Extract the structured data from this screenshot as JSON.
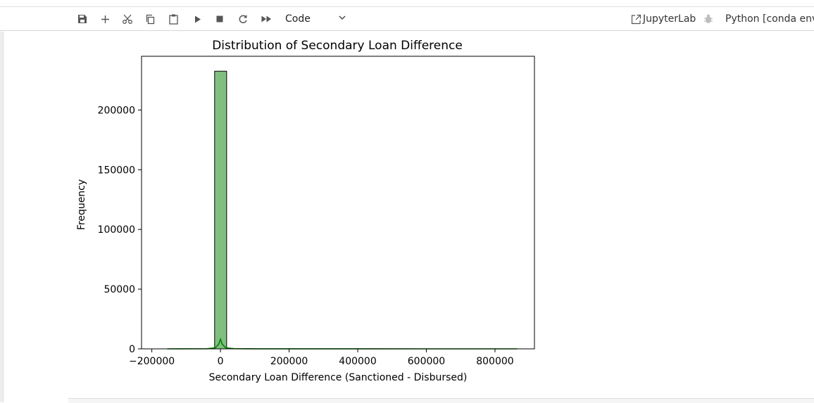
{
  "toolbar": {
    "cell_type": "Code",
    "jupyterlab_label": "JupyterLab",
    "kernel_name": "Python [conda env:",
    "buttons": [
      "save-icon",
      "plus-icon",
      "scissors-icon",
      "copy-icon",
      "paste-icon",
      "play-icon",
      "stop-icon",
      "restart-icon",
      "fast-forward-icon"
    ]
  },
  "chart_data": {
    "type": "bar",
    "title": "Distribution of Secondary Loan Difference",
    "xlabel": "Secondary Loan Difference (Sanctioned - Disbursed)",
    "ylabel": "Frequency",
    "xlim": [
      -230000,
      915000
    ],
    "ylim": [
      0,
      245000
    ],
    "xticks": [
      -200000,
      0,
      200000,
      400000,
      600000,
      800000
    ],
    "xtick_labels": [
      "−200000",
      "0",
      "200000",
      "400000",
      "600000",
      "800000"
    ],
    "yticks": [
      0,
      50000,
      100000,
      150000,
      200000
    ],
    "ytick_labels": [
      "0",
      "50000",
      "100000",
      "150000",
      "200000"
    ],
    "bins": [
      {
        "x0": -17000,
        "x1": 18000,
        "count": 232500
      },
      {
        "x0": 18000,
        "x1": 53000,
        "count": 300
      },
      {
        "x0": 53000,
        "x1": 88000,
        "count": 150
      }
    ],
    "kde": {
      "x": [
        -155000,
        -40000,
        -15000,
        -5000,
        0,
        5000,
        15000,
        40000,
        100000,
        300000,
        600000,
        865000
      ],
      "y": [
        0,
        100,
        900,
        4000,
        8000,
        4000,
        900,
        200,
        60,
        30,
        20,
        0
      ]
    },
    "colors": {
      "bar_fill": "#80bf80",
      "bar_edge": "#000000",
      "kde_line": "#008000"
    }
  }
}
